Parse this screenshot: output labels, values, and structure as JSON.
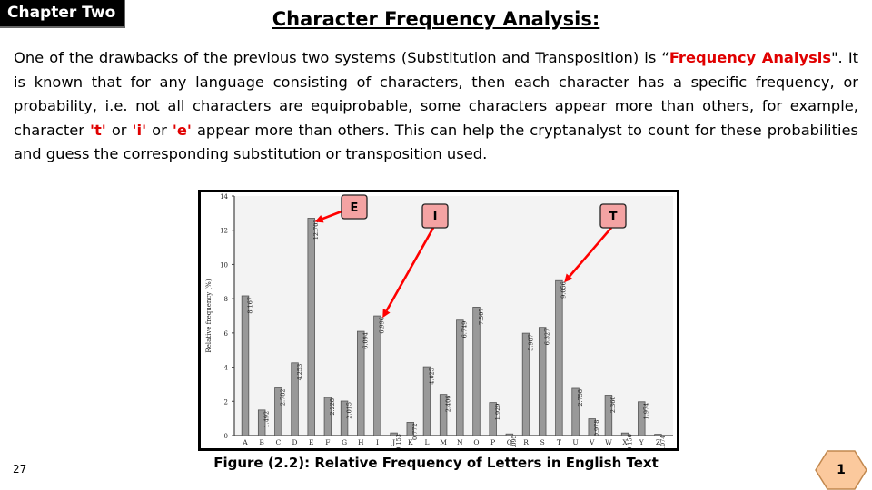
{
  "chapter_tag": "Chapter Two",
  "title": "Character Frequency Analysis:",
  "paragraph": {
    "p1": "One of the drawbacks of the previous two systems (Substitution and Transposition) is “",
    "fa": "Frequency Analysis",
    "p2": "\". It is known that for any language consisting of characters, then each character has a specific frequency, or probability, i.e. not all characters are equiprobable, some characters appear more than others, for example, character ",
    "t": "'t'",
    "or1": " or ",
    "i": "'i'",
    "or2": " or ",
    "e": "'e'",
    "p3": " appear more than others. This can help the cryptanalyst to count for these probabilities and guess the corresponding substitution or transposition used."
  },
  "chart_data": {
    "type": "bar",
    "ylabel": "Relative frequency (%)",
    "ylim": [
      0,
      14
    ],
    "yticks": [
      "0",
      "2",
      "4",
      "6",
      "8",
      "10",
      "12",
      "14"
    ],
    "categories": [
      "A",
      "B",
      "C",
      "D",
      "E",
      "F",
      "G",
      "H",
      "I",
      "J",
      "K",
      "L",
      "M",
      "N",
      "O",
      "P",
      "Q",
      "R",
      "S",
      "T",
      "U",
      "V",
      "W",
      "X",
      "Y",
      "Z"
    ],
    "values": [
      8.167,
      1.492,
      2.782,
      4.253,
      12.702,
      2.228,
      2.015,
      6.094,
      6.996,
      0.153,
      0.772,
      4.025,
      2.406,
      6.749,
      7.507,
      1.929,
      0.095,
      5.987,
      6.327,
      9.056,
      2.758,
      0.978,
      2.36,
      0.15,
      1.974,
      0.074
    ],
    "value_labels": [
      "8.167",
      "1.492",
      "2.782",
      "4.253",
      "12.702",
      "2.228",
      "2.015",
      "6.094",
      "6.996",
      "0.153",
      "0.772",
      "4.025",
      "2.406",
      "6.749",
      "7.507",
      "1.929",
      "0.095",
      "5.987",
      "6.327",
      "9.056",
      "2.758",
      "0.978",
      "2.360",
      "0.150",
      "1.974",
      "0.074"
    ],
    "grid": false,
    "bar_color": "#999999",
    "annotations": [
      {
        "text": "E",
        "category": "E",
        "color": "#ff0000",
        "box_fill": "#f4a3a3"
      },
      {
        "text": "I",
        "category": "I",
        "color": "#ff0000",
        "box_fill": "#f4a3a3"
      },
      {
        "text": "T",
        "category": "T",
        "color": "#ff0000",
        "box_fill": "#f4a3a3"
      }
    ]
  },
  "figure_caption": "Figure (2.2): Relative Frequency of Letters in English Text",
  "page_number": "27",
  "slide_badge": "1",
  "colors": {
    "highlight": "#e00000",
    "badge_fill": "#fbc99d",
    "badge_border": "#c2884e"
  }
}
